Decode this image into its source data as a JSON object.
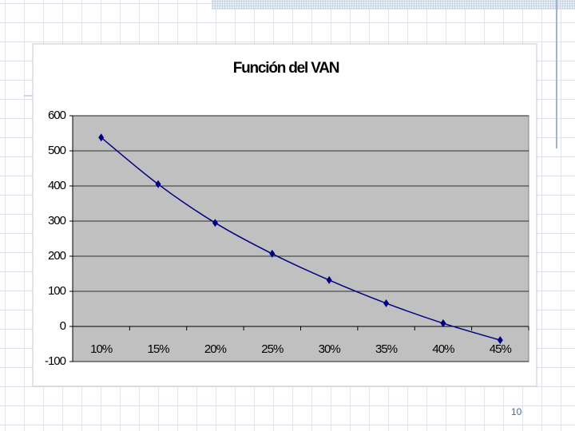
{
  "chart_data": {
    "type": "line",
    "title": "Función del VAN",
    "categories": [
      "10%",
      "15%",
      "20%",
      "25%",
      "30%",
      "35%",
      "40%",
      "45%"
    ],
    "values": [
      538,
      405,
      295,
      207,
      132,
      66,
      9,
      -39
    ],
    "color": "#000080",
    "ylim": [
      -100,
      600
    ],
    "yticks": [
      -100,
      0,
      100,
      200,
      300,
      400,
      500,
      600
    ],
    "grid": true
  },
  "page_number": "10"
}
